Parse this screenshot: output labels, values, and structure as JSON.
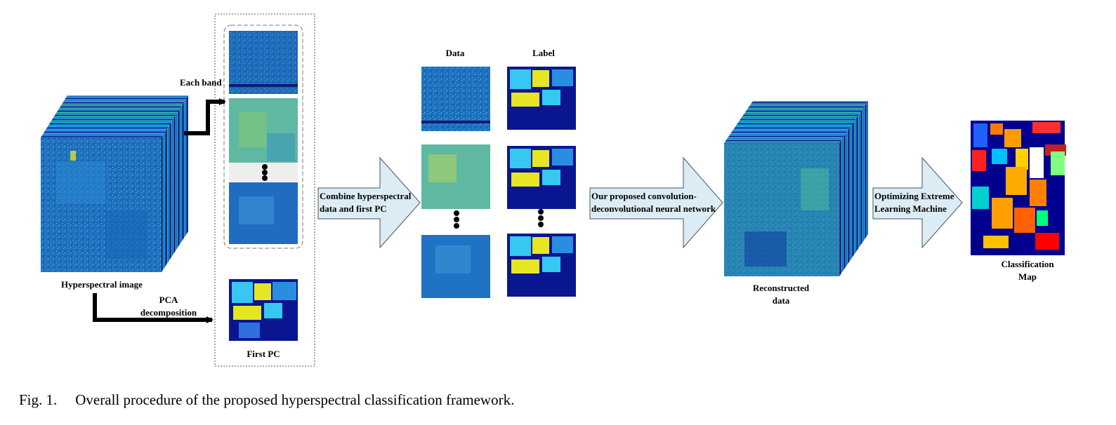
{
  "labels": {
    "hyperspectral_image": "Hyperspectral image",
    "each_band": "Each band",
    "pca_line1": "PCA",
    "pca_line2": "decomposition",
    "first_pc": "First PC",
    "data": "Data",
    "label": "Label",
    "reconstructed_line1": "Reconstructed",
    "reconstructed_line2": "data",
    "classification_line1": "Classification",
    "classification_line2": "Map"
  },
  "arrows": {
    "combine_line1": "Combine hyperspectral",
    "combine_line2": "data and first PC",
    "network_line1": "Our proposed convolution-",
    "network_line2": "deconvolutional neural network",
    "elm_line1": "Optimizing Extreme",
    "elm_line2": "Learning Machine"
  },
  "caption": {
    "figure": "Fig. 1.",
    "text": "Overall procedure of the proposed hyperspectral classification framework."
  },
  "colors": {
    "arrow_fill": "#dcecf4",
    "arrow_stroke": "#4a5560",
    "map_background": "#00008f",
    "band_blue": "#1c74c4",
    "band_green": "#67b890",
    "label_yellow": "#e6e622",
    "label_cyan": "#33c8f0"
  }
}
